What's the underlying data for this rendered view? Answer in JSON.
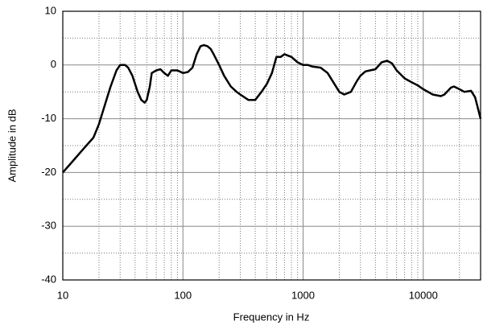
{
  "chart_data": {
    "type": "line",
    "x_label": "Frequency in Hz",
    "y_label": "Amplitude in dB",
    "x_scale": "log",
    "xlim": [
      10,
      30000
    ],
    "ylim": [
      -40,
      10
    ],
    "xticks": [
      10,
      100,
      1000,
      10000
    ],
    "yticks": [
      10,
      0,
      -10,
      -20,
      -30,
      -40
    ],
    "xminor": [
      20,
      30,
      40,
      50,
      60,
      70,
      80,
      90,
      200,
      300,
      400,
      500,
      600,
      700,
      800,
      900,
      2000,
      3000,
      4000,
      5000,
      6000,
      7000,
      8000,
      9000,
      20000
    ],
    "yminor": [
      5,
      -5,
      -15,
      -25,
      -35
    ],
    "grid": true,
    "series": [
      {
        "color": "#000000",
        "x": [
          10,
          12,
          15,
          18,
          20,
          22,
          25,
          28,
          30,
          33,
          35,
          38,
          42,
          45,
          48,
          50,
          53,
          55,
          60,
          65,
          70,
          75,
          80,
          90,
          100,
          110,
          120,
          130,
          140,
          150,
          160,
          170,
          180,
          200,
          220,
          250,
          280,
          300,
          350,
          400,
          450,
          500,
          550,
          600,
          650,
          700,
          800,
          900,
          1000,
          1100,
          1200,
          1400,
          1600,
          2000,
          2200,
          2500,
          2800,
          3000,
          3300,
          3600,
          4000,
          4500,
          5000,
          5500,
          6000,
          7000,
          8000,
          9000,
          10000,
          12000,
          14000,
          15000,
          17000,
          18000,
          20000,
          22000,
          25000,
          27000,
          30000
        ],
        "values": [
          -20,
          -18,
          -15.5,
          -13.5,
          -11,
          -8,
          -4,
          -1,
          0,
          0,
          -0.5,
          -2,
          -5,
          -6.5,
          -7,
          -6.5,
          -4,
          -1.5,
          -1,
          -0.8,
          -1.5,
          -2,
          -1,
          -1,
          -1.5,
          -1.3,
          -0.5,
          2,
          3.5,
          3.7,
          3.5,
          3,
          2,
          0,
          -2,
          -4,
          -5,
          -5.5,
          -6.5,
          -6.5,
          -5,
          -3.5,
          -1.5,
          1.5,
          1.5,
          2,
          1.5,
          0.5,
          0,
          0,
          -0.3,
          -0.5,
          -1.5,
          -5,
          -5.5,
          -5,
          -3,
          -2,
          -1.2,
          -1,
          -0.8,
          0.5,
          0.8,
          0.3,
          -1,
          -2.5,
          -3.2,
          -3.8,
          -4.5,
          -5.5,
          -5.8,
          -5.5,
          -4.2,
          -4,
          -4.5,
          -5,
          -4.8,
          -6,
          -10
        ]
      }
    ]
  }
}
